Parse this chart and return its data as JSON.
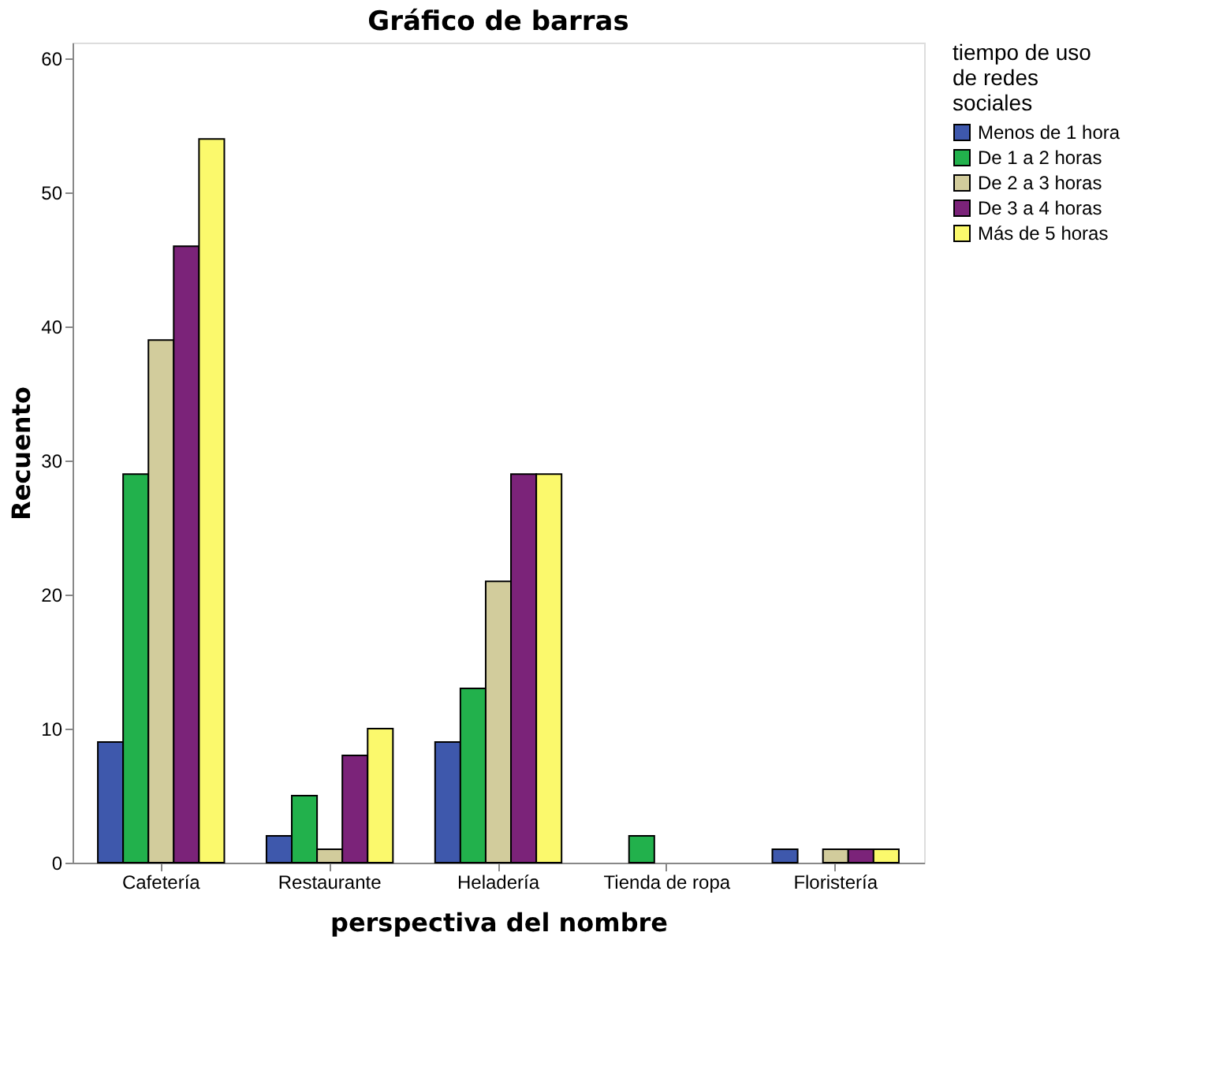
{
  "chart_data": {
    "type": "bar",
    "title": "Gráfico de barras",
    "xlabel": "perspectiva del nombre",
    "ylabel": "Recuento",
    "legend_title": "tiempo de uso de redes sociales",
    "categories": [
      "Cafetería",
      "Restaurante",
      "Heladería",
      "Tienda de ropa",
      "Floristería"
    ],
    "series": [
      {
        "name": "Menos de 1 hora",
        "color": "#3e58ac",
        "values": [
          9,
          2,
          9,
          null,
          1
        ]
      },
      {
        "name": "De 1 a 2 horas",
        "color": "#22b14c",
        "values": [
          29,
          5,
          13,
          2,
          null
        ]
      },
      {
        "name": "De 2 a 3 horas",
        "color": "#d2cc9c",
        "values": [
          39,
          1,
          21,
          null,
          1
        ]
      },
      {
        "name": "De 3 a 4 horas",
        "color": "#7b2379",
        "values": [
          46,
          8,
          29,
          null,
          1
        ]
      },
      {
        "name": "Más de 5 horas",
        "color": "#fbf96c",
        "values": [
          54,
          10,
          29,
          null,
          1
        ]
      }
    ],
    "ylim": [
      0,
      61.2
    ],
    "yticks": [
      0,
      10,
      20,
      30,
      40,
      50,
      60
    ],
    "grid": false,
    "legend": "top right"
  }
}
